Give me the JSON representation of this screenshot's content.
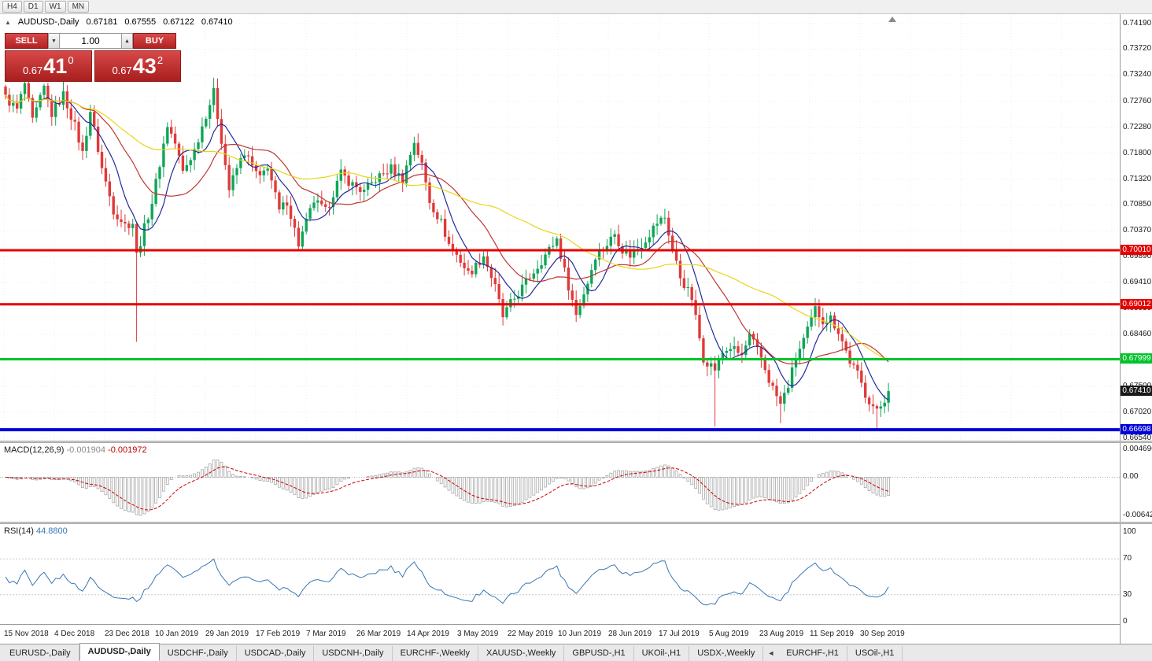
{
  "toolbar": {
    "timeframes": [
      "H4",
      "D1",
      "W1",
      "MN"
    ]
  },
  "chart": {
    "title": {
      "symbol": "AUDUSD-,Daily",
      "open": "0.67181",
      "high": "0.67555",
      "low": "0.67122",
      "close": "0.67410"
    },
    "one_click": {
      "sell_label": "SELL",
      "buy_label": "BUY",
      "volume": "1.00",
      "bid": {
        "prefix": "0.67",
        "big": "41",
        "sup": "0"
      },
      "ask": {
        "prefix": "0.67",
        "big": "43",
        "sup": "2"
      }
    }
  },
  "chart_data": {
    "type": "candlestick",
    "symbol": "AUDUSD",
    "timeframe": "Daily",
    "title": "AUDUSD-,Daily 0.67181 0.67555 0.67122 0.67410",
    "price_axis": {
      "top": 0.7419,
      "bottom": 0.6654,
      "labels": [
        "0.74190",
        "0.73720",
        "0.73240",
        "0.72760",
        "0.72280",
        "0.71800",
        "0.71320",
        "0.70850",
        "0.70370",
        "0.69890",
        "0.69410",
        "0.68930",
        "0.68460",
        "0.67980",
        "0.67500",
        "0.67020",
        "0.66540"
      ]
    },
    "x_axis_labels": [
      "15 Nov 2018",
      "4 Dec 2018",
      "23 Dec 2018",
      "10 Jan 2019",
      "29 Jan 2019",
      "17 Feb 2019",
      "7 Mar 2019",
      "26 Mar 2019",
      "14 Apr 2019",
      "3 May 2019",
      "22 May 2019",
      "10 Jun 2019",
      "28 Jun 2019",
      "17 Jul 2019",
      "5 Aug 2019",
      "23 Aug 2019",
      "11 Sep 2019",
      "30 Sep 2019"
    ],
    "horizontal_lines": [
      {
        "price": 0.7001,
        "color": "#e60000",
        "width": 3,
        "label": "0.70010"
      },
      {
        "price": 0.69012,
        "color": "#e60000",
        "width": 3,
        "label": "0.69012"
      },
      {
        "price": 0.67999,
        "color": "#00c32b",
        "width": 3,
        "label": "0.67999"
      },
      {
        "price": 0.66698,
        "color": "#0000dc",
        "width": 4,
        "label": "0.66698"
      }
    ],
    "current_price": {
      "value": 0.6741,
      "label": "0.67410",
      "tag_color": "#1a1a1a"
    },
    "candles": {
      "count": 230,
      "up_color": "#0fa558",
      "down_color": "#e03a3a",
      "close_anchors": [
        [
          0,
          0.7282
        ],
        [
          3,
          0.726
        ],
        [
          5,
          0.7308
        ],
        [
          7,
          0.7238
        ],
        [
          10,
          0.73
        ],
        [
          12,
          0.7252
        ],
        [
          15,
          0.7288
        ],
        [
          18,
          0.723
        ],
        [
          20,
          0.718
        ],
        [
          22,
          0.7258
        ],
        [
          25,
          0.7152
        ],
        [
          28,
          0.7075
        ],
        [
          31,
          0.7048
        ],
        [
          33,
          0.7052
        ],
        [
          34,
          0.6992
        ],
        [
          36,
          0.7042
        ],
        [
          38,
          0.709
        ],
        [
          42,
          0.7232
        ],
        [
          44,
          0.7198
        ],
        [
          46,
          0.7145
        ],
        [
          49,
          0.7186
        ],
        [
          52,
          0.7252
        ],
        [
          54,
          0.7292
        ],
        [
          56,
          0.7205
        ],
        [
          58,
          0.7113
        ],
        [
          60,
          0.7152
        ],
        [
          62,
          0.7182
        ],
        [
          64,
          0.7155
        ],
        [
          66,
          0.7132
        ],
        [
          68,
          0.7158
        ],
        [
          71,
          0.7072
        ],
        [
          73,
          0.7092
        ],
        [
          76,
          0.7012
        ],
        [
          78,
          0.7052
        ],
        [
          80,
          0.7092
        ],
        [
          83,
          0.7072
        ],
        [
          87,
          0.7142
        ],
        [
          90,
          0.7122
        ],
        [
          93,
          0.7108
        ],
        [
          96,
          0.7132
        ],
        [
          100,
          0.7152
        ],
        [
          103,
          0.7132
        ],
        [
          106,
          0.7202
        ],
        [
          108,
          0.7158
        ],
        [
          110,
          0.7092
        ],
        [
          113,
          0.7052
        ],
        [
          115,
          0.7012
        ],
        [
          118,
          0.6982
        ],
        [
          120,
          0.6958
        ],
        [
          122,
          0.6972
        ],
        [
          124,
          0.6992
        ],
        [
          127,
          0.6932
        ],
        [
          129,
          0.6878
        ],
        [
          131,
          0.6902
        ],
        [
          134,
          0.6932
        ],
        [
          137,
          0.6962
        ],
        [
          140,
          0.6992
        ],
        [
          143,
          0.7022
        ],
        [
          145,
          0.6962
        ],
        [
          148,
          0.6882
        ],
        [
          151,
          0.6942
        ],
        [
          153,
          0.6992
        ],
        [
          156,
          0.7012
        ],
        [
          158,
          0.7032
        ],
        [
          160,
          0.7002
        ],
        [
          162,
          0.6992
        ],
        [
          165,
          0.7012
        ],
        [
          167,
          0.7032
        ],
        [
          169,
          0.7052
        ],
        [
          171,
          0.7062
        ],
        [
          173,
          0.7002
        ],
        [
          175,
          0.6952
        ],
        [
          178,
          0.6912
        ],
        [
          181,
          0.6802
        ],
        [
          184,
          0.6782
        ],
        [
          186,
          0.6812
        ],
        [
          188,
          0.6822
        ],
        [
          191,
          0.6806
        ],
        [
          193,
          0.6842
        ],
        [
          196,
          0.6802
        ],
        [
          198,
          0.6762
        ],
        [
          201,
          0.6716
        ],
        [
          203,
          0.6752
        ],
        [
          205,
          0.6802
        ],
        [
          208,
          0.6852
        ],
        [
          210,
          0.6892
        ],
        [
          212,
          0.6872
        ],
        [
          214,
          0.6876
        ],
        [
          216,
          0.6852
        ],
        [
          219,
          0.6796
        ],
        [
          221,
          0.6772
        ],
        [
          223,
          0.6736
        ],
        [
          226,
          0.6702
        ],
        [
          228,
          0.6726
        ],
        [
          229,
          0.6741
        ]
      ],
      "wick_lows": {
        "34": 0.6832,
        "184": 0.6676,
        "201": 0.6682,
        "226": 0.6671
      }
    },
    "moving_averages": [
      {
        "period": 8,
        "color": "#222a9e"
      },
      {
        "period": 20,
        "color": "#c03535"
      },
      {
        "period": 50,
        "color": "#e8d616"
      }
    ],
    "indicators": {
      "macd": {
        "name": "MACD(12,26,9)",
        "value": "-0.001904",
        "signal_value": "-0.001972",
        "scale_top": "0.004696",
        "scale_zero": "0.00",
        "scale_bottom": "-0.006427",
        "histogram_color": "#a8a8a8",
        "signal_color": "#cc0000"
      },
      "rsi": {
        "name": "RSI(14)",
        "value": "44.8800",
        "scale": [
          "100",
          "70",
          "30",
          "0"
        ],
        "levels": [
          70,
          30
        ],
        "line_color": "#3a77b5"
      }
    }
  },
  "bottom_tabs": {
    "scroll_left_label": "◄",
    "tabs": [
      {
        "label": "EURUSD-,Daily",
        "active": false
      },
      {
        "label": "AUDUSD-,Daily",
        "active": true
      },
      {
        "label": "USDCHF-,Daily",
        "active": false
      },
      {
        "label": "USDCAD-,Daily",
        "active": false
      },
      {
        "label": "USDCNH-,Daily",
        "active": false
      },
      {
        "label": "EURCHF-,Weekly",
        "active": false
      },
      {
        "label": "XAUUSD-,Weekly",
        "active": false
      },
      {
        "label": "GBPUSD-,H1",
        "active": false
      },
      {
        "label": "UKOil-,H1",
        "active": false
      },
      {
        "label": "USDX-,Weekly",
        "active": false
      },
      {
        "label": "EURCHF-,H1",
        "active": false
      },
      {
        "label": "USOil-,H1",
        "active": false
      }
    ]
  }
}
